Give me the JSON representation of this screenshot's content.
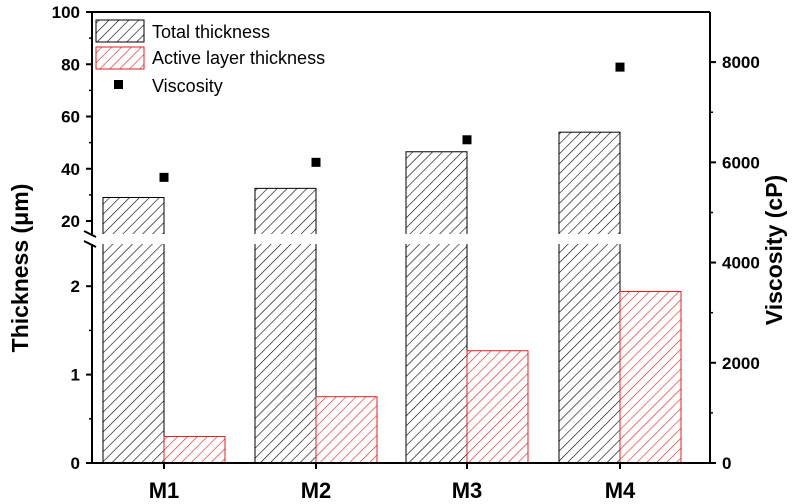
{
  "chart_data": {
    "type": "bar",
    "categories": [
      "M1",
      "M2",
      "M3",
      "M4"
    ],
    "series": [
      {
        "name": "Total thickness",
        "axis": "left",
        "style": "hatch-black",
        "values": [
          29,
          32.5,
          46.5,
          54
        ]
      },
      {
        "name": "Active layer thickness",
        "axis": "left",
        "style": "hatch-red",
        "values": [
          0.3,
          0.75,
          1.27,
          1.94
        ]
      },
      {
        "name": "Viscosity",
        "axis": "right",
        "style": "square-marker",
        "values": [
          5700,
          6000,
          6450,
          7900
        ]
      }
    ],
    "left_axis": {
      "label": "Thickness (μm)",
      "broken": true,
      "lower_range": [
        0,
        2.5
      ],
      "upper_range": [
        14,
        100
      ],
      "lower_ticks": [
        "0",
        "1",
        "2"
      ],
      "upper_ticks": [
        "20",
        "40",
        "60",
        "80",
        "100"
      ]
    },
    "right_axis": {
      "label": "Viscosity (cP)",
      "range": [
        0,
        9000
      ],
      "ticks": [
        "0",
        "2000",
        "4000",
        "6000",
        "8000"
      ]
    },
    "legend": {
      "position": "top-left",
      "entries": [
        "Total thickness",
        "Active layer thickness",
        "Viscosity"
      ]
    },
    "colors": {
      "total": "#000000",
      "active": "#e02020",
      "axis": "#000000"
    }
  }
}
